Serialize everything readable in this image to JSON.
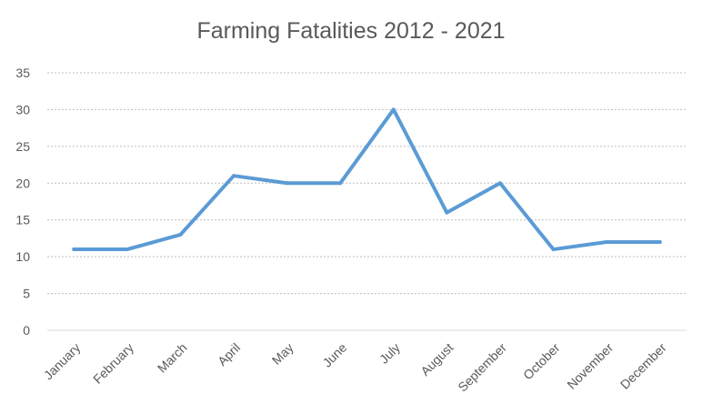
{
  "chart_data": {
    "type": "line",
    "title": "Farming Fatalities 2012 - 2021",
    "xlabel": "",
    "ylabel": "",
    "categories": [
      "January",
      "February",
      "March",
      "April",
      "May",
      "June",
      "July",
      "August",
      "September",
      "October",
      "November",
      "December"
    ],
    "series": [
      {
        "values": [
          11,
          11,
          13,
          21,
          20,
          20,
          30,
          16,
          20,
          11,
          12,
          12
        ],
        "color": "#5b9bd5"
      }
    ],
    "ylim": [
      0,
      35
    ],
    "yticks": [
      0,
      5,
      10,
      15,
      20,
      25,
      30,
      35
    ],
    "grid": true,
    "legend": "none"
  }
}
